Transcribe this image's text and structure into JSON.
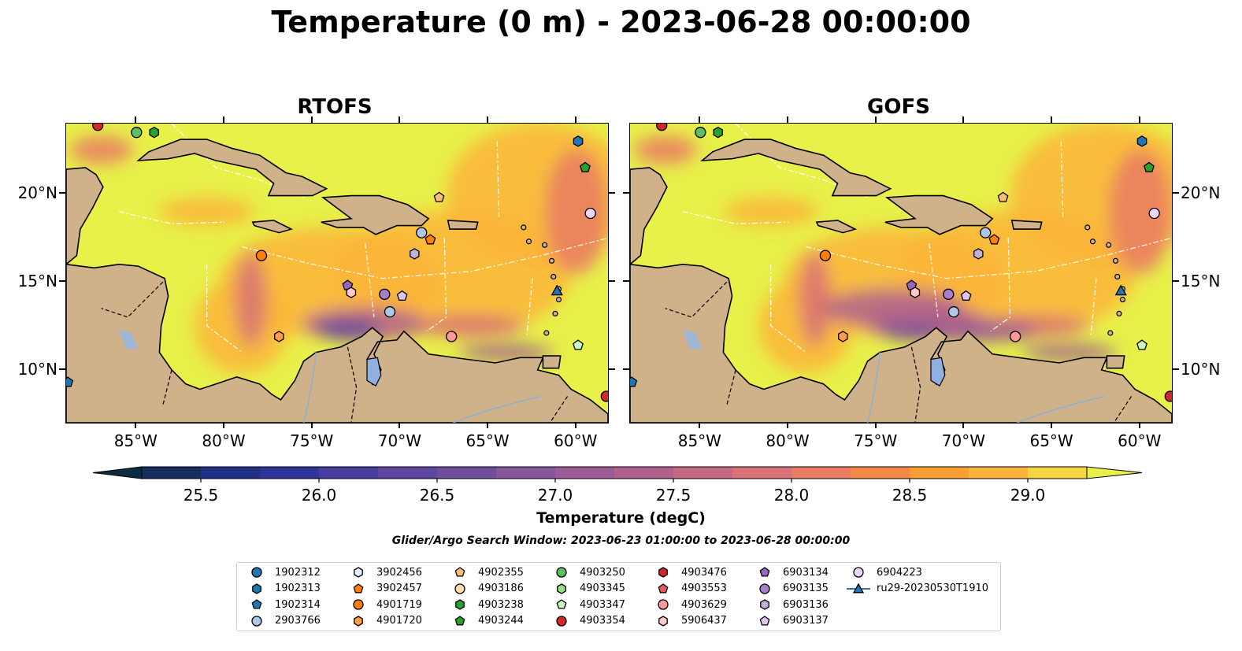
{
  "title": "Temperature (0 m) - 2023-06-28 00:00:00",
  "panels": [
    {
      "name": "RTOFS"
    },
    {
      "name": "GOFS"
    }
  ],
  "map_extent": {
    "lon_min": -89,
    "lon_max": -58.2,
    "lat_min": 7,
    "lat_max": 24
  },
  "lon_ticks": [
    {
      "value": -85,
      "label": "85°W"
    },
    {
      "value": -80,
      "label": "80°W"
    },
    {
      "value": -75,
      "label": "75°W"
    },
    {
      "value": -70,
      "label": "70°W"
    },
    {
      "value": -65,
      "label": "65°W"
    },
    {
      "value": -60,
      "label": "60°W"
    }
  ],
  "lat_ticks": [
    {
      "value": 20,
      "label": "20°N"
    },
    {
      "value": 15,
      "label": "15°N"
    },
    {
      "value": 10,
      "label": "10°N"
    }
  ],
  "colorbar": {
    "label": "Temperature (degC)",
    "min": 25.25,
    "max": 29.25,
    "step": 0.25,
    "ticks": [
      "25.5",
      "26.0",
      "26.5",
      "27.0",
      "27.5",
      "28.0",
      "28.5",
      "29.0"
    ],
    "colors": [
      "#0c2c44",
      "#172d5e",
      "#222f86",
      "#2f3497",
      "#473d9e",
      "#5c469e",
      "#704d9c",
      "#875599",
      "#9b5b94",
      "#b0618d",
      "#c56983",
      "#d87276",
      "#e97c63",
      "#f58948",
      "#fa9e36",
      "#fcb43a",
      "#f6d540",
      "#e8f04a"
    ]
  },
  "land_color": "#d0b28a",
  "search_window": "Glider/Argo Search Window: 2023-06-23 01:00:00 to 2023-06-28 00:00:00",
  "legend": [
    {
      "label": "1902312",
      "marker": "circle",
      "color": "#1f77b4"
    },
    {
      "label": "1902313",
      "marker": "hexagon",
      "color": "#1f77b4"
    },
    {
      "label": "1902314",
      "marker": "pentagon",
      "color": "#1f77b4"
    },
    {
      "label": "2903766",
      "marker": "circle",
      "color": "#aec7e8"
    },
    {
      "label": "3902456",
      "marker": "hexagon",
      "color": "#e1efff"
    },
    {
      "label": "3902457",
      "marker": "pentagon",
      "color": "#ff7f0e"
    },
    {
      "label": "4901719",
      "marker": "circle",
      "color": "#ff7f0e"
    },
    {
      "label": "4901720",
      "marker": "hexagon",
      "color": "#ff9c4a"
    },
    {
      "label": "4902355",
      "marker": "pentagon",
      "color": "#ffbb78"
    },
    {
      "label": "4903186",
      "marker": "circle",
      "color": "#ffd8b0"
    },
    {
      "label": "4903238",
      "marker": "hexagon",
      "color": "#2ca02c"
    },
    {
      "label": "4903244",
      "marker": "pentagon",
      "color": "#2ca02c"
    },
    {
      "label": "4903250",
      "marker": "circle",
      "color": "#5fbf5f"
    },
    {
      "label": "4903345",
      "marker": "hexagon",
      "color": "#98df8a"
    },
    {
      "label": "4903347",
      "marker": "pentagon",
      "color": "#c9f7c0"
    },
    {
      "label": "4903354",
      "marker": "circle",
      "color": "#d62728"
    },
    {
      "label": "4903476",
      "marker": "hexagon",
      "color": "#d62728"
    },
    {
      "label": "4903553",
      "marker": "pentagon",
      "color": "#e45a5c"
    },
    {
      "label": "4903629",
      "marker": "circle",
      "color": "#ff9896"
    },
    {
      "label": "5906437",
      "marker": "hexagon",
      "color": "#ffc9c7"
    },
    {
      "label": "6903134",
      "marker": "pentagon",
      "color": "#9467bd"
    },
    {
      "label": "6903135",
      "marker": "circle",
      "color": "#a57fcc"
    },
    {
      "label": "6903136",
      "marker": "hexagon",
      "color": "#c5b0d5"
    },
    {
      "label": "6903137",
      "marker": "pentagon",
      "color": "#dcc6ee"
    },
    {
      "label": "6904223",
      "marker": "circle",
      "color": "#ecd6ff"
    },
    {
      "label": "ru29-20230530T1910",
      "marker": "triangle-line",
      "color": "#1f77b4"
    }
  ],
  "floats": [
    {
      "id": "1902313",
      "lon": -59.9,
      "lat": 23.0
    },
    {
      "id": "4903244",
      "lon": -59.5,
      "lat": 21.5
    },
    {
      "id": "6904223",
      "lon": -59.2,
      "lat": 18.9
    },
    {
      "id": "4903250",
      "lon": -85.0,
      "lat": 23.5
    },
    {
      "id": "4903238",
      "lon": -84.0,
      "lat": 23.5
    },
    {
      "id": "4903354",
      "lon": -87.2,
      "lat": 23.9
    },
    {
      "id": "4902355",
      "lon": -67.8,
      "lat": 19.8
    },
    {
      "id": "2903766",
      "lon": -68.8,
      "lat": 17.8
    },
    {
      "id": "3902457",
      "lon": -68.3,
      "lat": 17.4
    },
    {
      "id": "6903136",
      "lon": -69.2,
      "lat": 16.6
    },
    {
      "id": "4901719",
      "lon": -77.9,
      "lat": 16.5
    },
    {
      "id": "6903134",
      "lon": -73.0,
      "lat": 14.8
    },
    {
      "id": "5906437",
      "lon": -72.8,
      "lat": 14.4
    },
    {
      "id": "6903135",
      "lon": -70.9,
      "lat": 14.3
    },
    {
      "id": "6903137",
      "lon": -69.9,
      "lat": 14.2
    },
    {
      "id": "2903766",
      "lon": -70.6,
      "lat": 13.3
    },
    {
      "id": "4901720",
      "lon": -76.9,
      "lat": 11.9
    },
    {
      "id": "4903629",
      "lon": -67.1,
      "lat": 11.9
    },
    {
      "id": "4903347",
      "lon": -59.9,
      "lat": 11.4
    },
    {
      "id": "ru29-20230530T1910",
      "lon": -61.1,
      "lat": 14.5
    },
    {
      "id": "4903354",
      "lon": -58.3,
      "lat": 8.5
    },
    {
      "id": "1902314",
      "lon": -88.9,
      "lat": 9.3
    }
  ]
}
